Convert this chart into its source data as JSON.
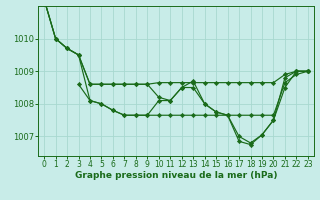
{
  "background_color": "#c8ece8",
  "grid_color": "#a8d8d0",
  "line_color": "#1a6b1a",
  "marker_color": "#1a6b1a",
  "xlabel": "Graphe pression niveau de la mer (hPa)",
  "xlabel_fontsize": 6.5,
  "xlim": [
    -0.5,
    23.5
  ],
  "ylim": [
    1006.4,
    1011.0
  ],
  "yticks": [
    1007,
    1008,
    1009,
    1010
  ],
  "xticks": [
    0,
    1,
    2,
    3,
    4,
    5,
    6,
    7,
    8,
    9,
    10,
    11,
    12,
    13,
    14,
    15,
    16,
    17,
    18,
    19,
    20,
    21,
    22,
    23
  ],
  "series": [
    {
      "x": [
        0,
        1,
        2,
        3,
        4,
        5,
        6,
        7,
        8,
        9,
        10,
        11,
        12,
        13,
        14,
        15,
        16,
        17,
        18,
        19,
        20,
        21,
        22,
        23
      ],
      "y": [
        1011.2,
        1010.0,
        1009.7,
        1009.5,
        1008.6,
        1008.6,
        1008.6,
        1008.6,
        1008.6,
        1008.6,
        1008.65,
        1008.65,
        1008.65,
        1008.65,
        1008.65,
        1008.65,
        1008.65,
        1008.65,
        1008.65,
        1008.65,
        1008.65,
        1008.9,
        1009.0,
        1009.0
      ]
    },
    {
      "x": [
        0,
        1,
        2,
        3,
        4,
        5,
        6,
        7,
        8,
        9,
        10,
        11,
        12,
        13,
        14,
        15,
        16,
        17,
        18,
        19,
        20,
        21,
        22,
        23
      ],
      "y": [
        1011.2,
        1010.0,
        1009.7,
        1009.5,
        1008.1,
        1008.0,
        1007.8,
        1007.65,
        1007.65,
        1007.65,
        1008.1,
        1008.1,
        1008.5,
        1008.7,
        1008.0,
        1007.75,
        1007.65,
        1007.0,
        1006.8,
        1007.05,
        1007.5,
        1008.8,
        1009.0,
        1009.0
      ]
    },
    {
      "x": [
        0,
        1,
        2,
        3,
        4,
        5,
        6,
        7,
        8,
        9,
        10,
        11,
        12,
        13,
        14,
        15,
        16,
        17,
        18,
        19,
        20,
        21,
        22,
        23
      ],
      "y": [
        1011.2,
        1010.0,
        1009.7,
        1009.5,
        1008.6,
        1008.6,
        1008.6,
        1008.6,
        1008.6,
        1008.6,
        1008.2,
        1008.1,
        1008.5,
        1008.5,
        1008.0,
        1007.75,
        1007.65,
        1006.85,
        1006.75,
        1007.05,
        1007.5,
        1008.5,
        1009.0,
        1009.0
      ]
    },
    {
      "x": [
        3,
        4,
        5,
        6,
        7,
        8,
        9,
        10,
        11,
        12,
        13,
        14,
        15,
        16,
        17,
        18,
        19,
        20,
        21,
        22,
        23
      ],
      "y": [
        1008.6,
        1008.1,
        1008.0,
        1007.8,
        1007.65,
        1007.65,
        1007.65,
        1007.65,
        1007.65,
        1007.65,
        1007.65,
        1007.65,
        1007.65,
        1007.65,
        1007.65,
        1007.65,
        1007.65,
        1007.65,
        1008.65,
        1008.9,
        1009.0
      ]
    }
  ]
}
